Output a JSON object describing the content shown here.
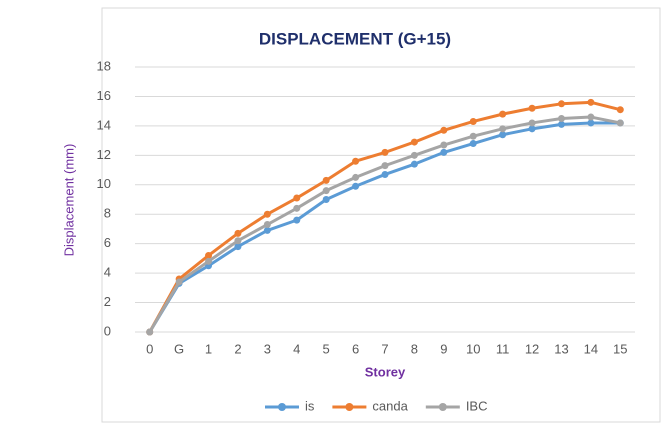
{
  "chart_data": {
    "type": "line",
    "title": "DISPLACEMENT (G+15)",
    "x_label": "Storey",
    "y_label": "Displacement (mm)",
    "categories": [
      "0",
      "G",
      "1",
      "2",
      "3",
      "4",
      "5",
      "6",
      "7",
      "8",
      "9",
      "10",
      "11",
      "12",
      "13",
      "14",
      "15"
    ],
    "series": [
      {
        "name": "is",
        "color": "#5b9bd5",
        "values": [
          0,
          3.3,
          4.5,
          5.8,
          6.9,
          7.6,
          9.0,
          9.9,
          10.7,
          11.4,
          12.2,
          12.8,
          13.4,
          13.8,
          14.1,
          14.2,
          14.2
        ]
      },
      {
        "name": "canda",
        "color": "#ed7d31",
        "values": [
          0,
          3.6,
          5.2,
          6.7,
          8.0,
          9.1,
          10.3,
          11.6,
          12.2,
          12.9,
          13.7,
          14.3,
          14.8,
          15.2,
          15.5,
          15.6,
          15.1
        ]
      },
      {
        "name": "IBC",
        "color": "#a5a5a5",
        "values": [
          0,
          3.4,
          4.8,
          6.2,
          7.3,
          8.4,
          9.6,
          10.5,
          11.3,
          12.0,
          12.7,
          13.3,
          13.8,
          14.2,
          14.5,
          14.6,
          14.2
        ]
      }
    ],
    "ylim": [
      0,
      18
    ],
    "yticks": [
      0,
      2,
      4,
      6,
      8,
      10,
      12,
      14,
      16,
      18
    ],
    "grid": true,
    "legend": "bottom"
  }
}
